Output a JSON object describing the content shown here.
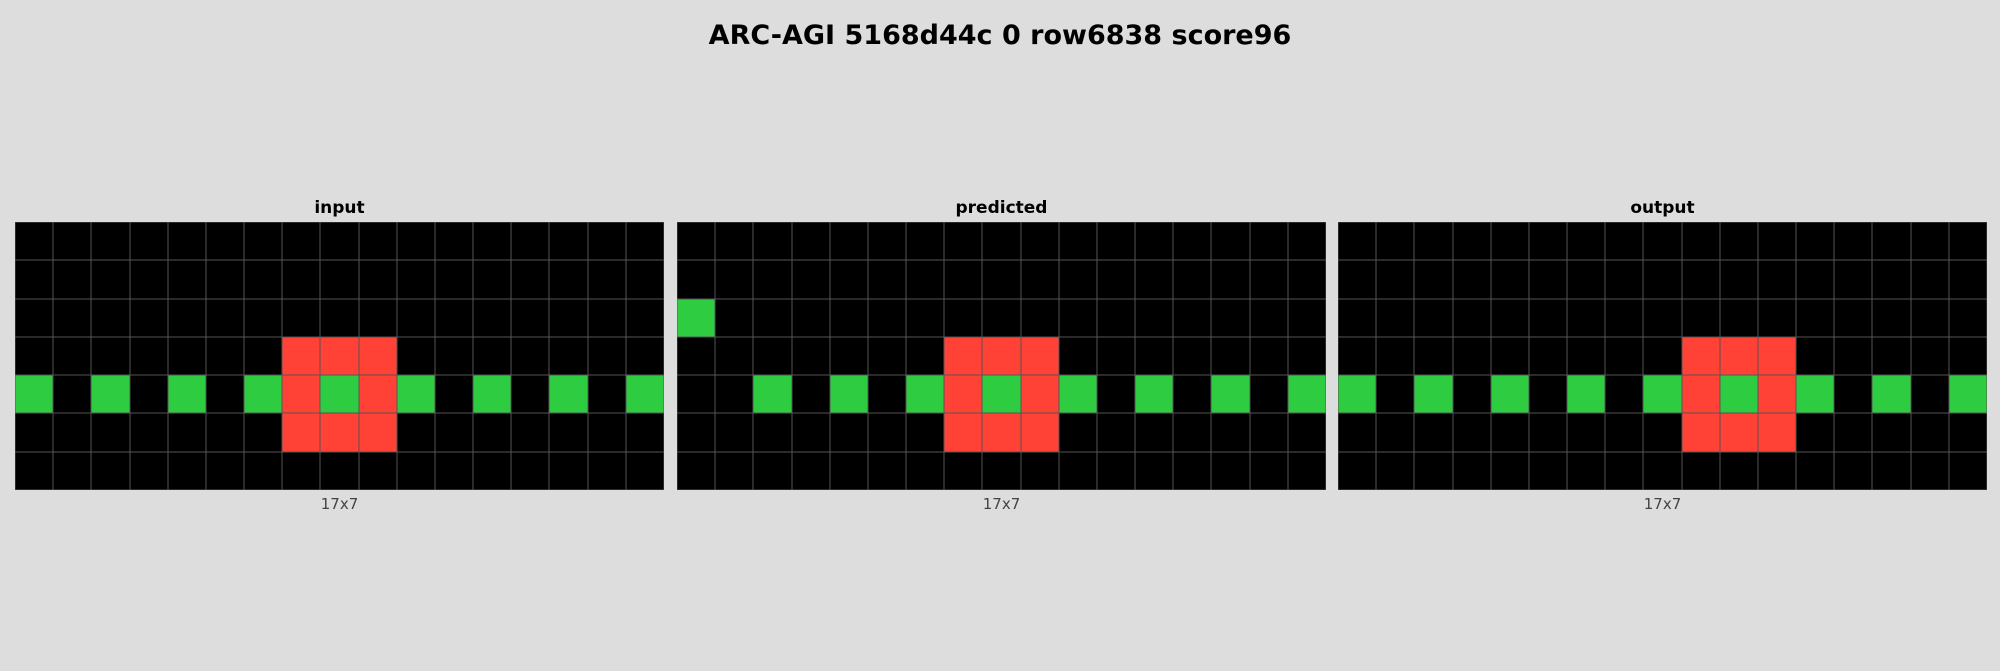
{
  "title": "ARC-AGI 5168d44c 0 row6838 score96",
  "colors": {
    "0": "#000000",
    "2": "#ff4136",
    "3": "#2ecc40"
  },
  "panels": [
    {
      "label": "input",
      "dims": "17x7",
      "grid": [
        [
          0,
          0,
          0,
          0,
          0,
          0,
          0,
          0,
          0,
          0,
          0,
          0,
          0,
          0,
          0,
          0,
          0
        ],
        [
          0,
          0,
          0,
          0,
          0,
          0,
          0,
          0,
          0,
          0,
          0,
          0,
          0,
          0,
          0,
          0,
          0
        ],
        [
          0,
          0,
          0,
          0,
          0,
          0,
          0,
          0,
          0,
          0,
          0,
          0,
          0,
          0,
          0,
          0,
          0
        ],
        [
          0,
          0,
          0,
          0,
          0,
          0,
          0,
          2,
          2,
          2,
          0,
          0,
          0,
          0,
          0,
          0,
          0
        ],
        [
          3,
          0,
          3,
          0,
          3,
          0,
          3,
          2,
          3,
          2,
          3,
          0,
          3,
          0,
          3,
          0,
          3
        ],
        [
          0,
          0,
          0,
          0,
          0,
          0,
          0,
          2,
          2,
          2,
          0,
          0,
          0,
          0,
          0,
          0,
          0
        ],
        [
          0,
          0,
          0,
          0,
          0,
          0,
          0,
          0,
          0,
          0,
          0,
          0,
          0,
          0,
          0,
          0,
          0
        ]
      ]
    },
    {
      "label": "predicted",
      "dims": "17x7",
      "grid": [
        [
          0,
          0,
          0,
          0,
          0,
          0,
          0,
          0,
          0,
          0,
          0,
          0,
          0,
          0,
          0,
          0,
          0
        ],
        [
          0,
          0,
          0,
          0,
          0,
          0,
          0,
          0,
          0,
          0,
          0,
          0,
          0,
          0,
          0,
          0,
          0
        ],
        [
          3,
          0,
          0,
          0,
          0,
          0,
          0,
          0,
          0,
          0,
          0,
          0,
          0,
          0,
          0,
          0,
          0
        ],
        [
          0,
          0,
          0,
          0,
          0,
          0,
          0,
          2,
          2,
          2,
          0,
          0,
          0,
          0,
          0,
          0,
          0
        ],
        [
          0,
          0,
          3,
          0,
          3,
          0,
          3,
          2,
          3,
          2,
          3,
          0,
          3,
          0,
          3,
          0,
          3
        ],
        [
          0,
          0,
          0,
          0,
          0,
          0,
          0,
          2,
          2,
          2,
          0,
          0,
          0,
          0,
          0,
          0,
          0
        ],
        [
          0,
          0,
          0,
          0,
          0,
          0,
          0,
          0,
          0,
          0,
          0,
          0,
          0,
          0,
          0,
          0,
          0
        ]
      ]
    },
    {
      "label": "output",
      "dims": "17x7",
      "grid": [
        [
          0,
          0,
          0,
          0,
          0,
          0,
          0,
          0,
          0,
          0,
          0,
          0,
          0,
          0,
          0,
          0,
          0
        ],
        [
          0,
          0,
          0,
          0,
          0,
          0,
          0,
          0,
          0,
          0,
          0,
          0,
          0,
          0,
          0,
          0,
          0
        ],
        [
          0,
          0,
          0,
          0,
          0,
          0,
          0,
          0,
          0,
          0,
          0,
          0,
          0,
          0,
          0,
          0,
          0
        ],
        [
          0,
          0,
          0,
          0,
          0,
          0,
          0,
          0,
          0,
          2,
          2,
          2,
          0,
          0,
          0,
          0,
          0
        ],
        [
          3,
          0,
          3,
          0,
          3,
          0,
          3,
          0,
          3,
          2,
          3,
          2,
          3,
          0,
          3,
          0,
          3
        ],
        [
          0,
          0,
          0,
          0,
          0,
          0,
          0,
          0,
          0,
          2,
          2,
          2,
          0,
          0,
          0,
          0,
          0
        ],
        [
          0,
          0,
          0,
          0,
          0,
          0,
          0,
          0,
          0,
          0,
          0,
          0,
          0,
          0,
          0,
          0,
          0
        ]
      ]
    }
  ]
}
